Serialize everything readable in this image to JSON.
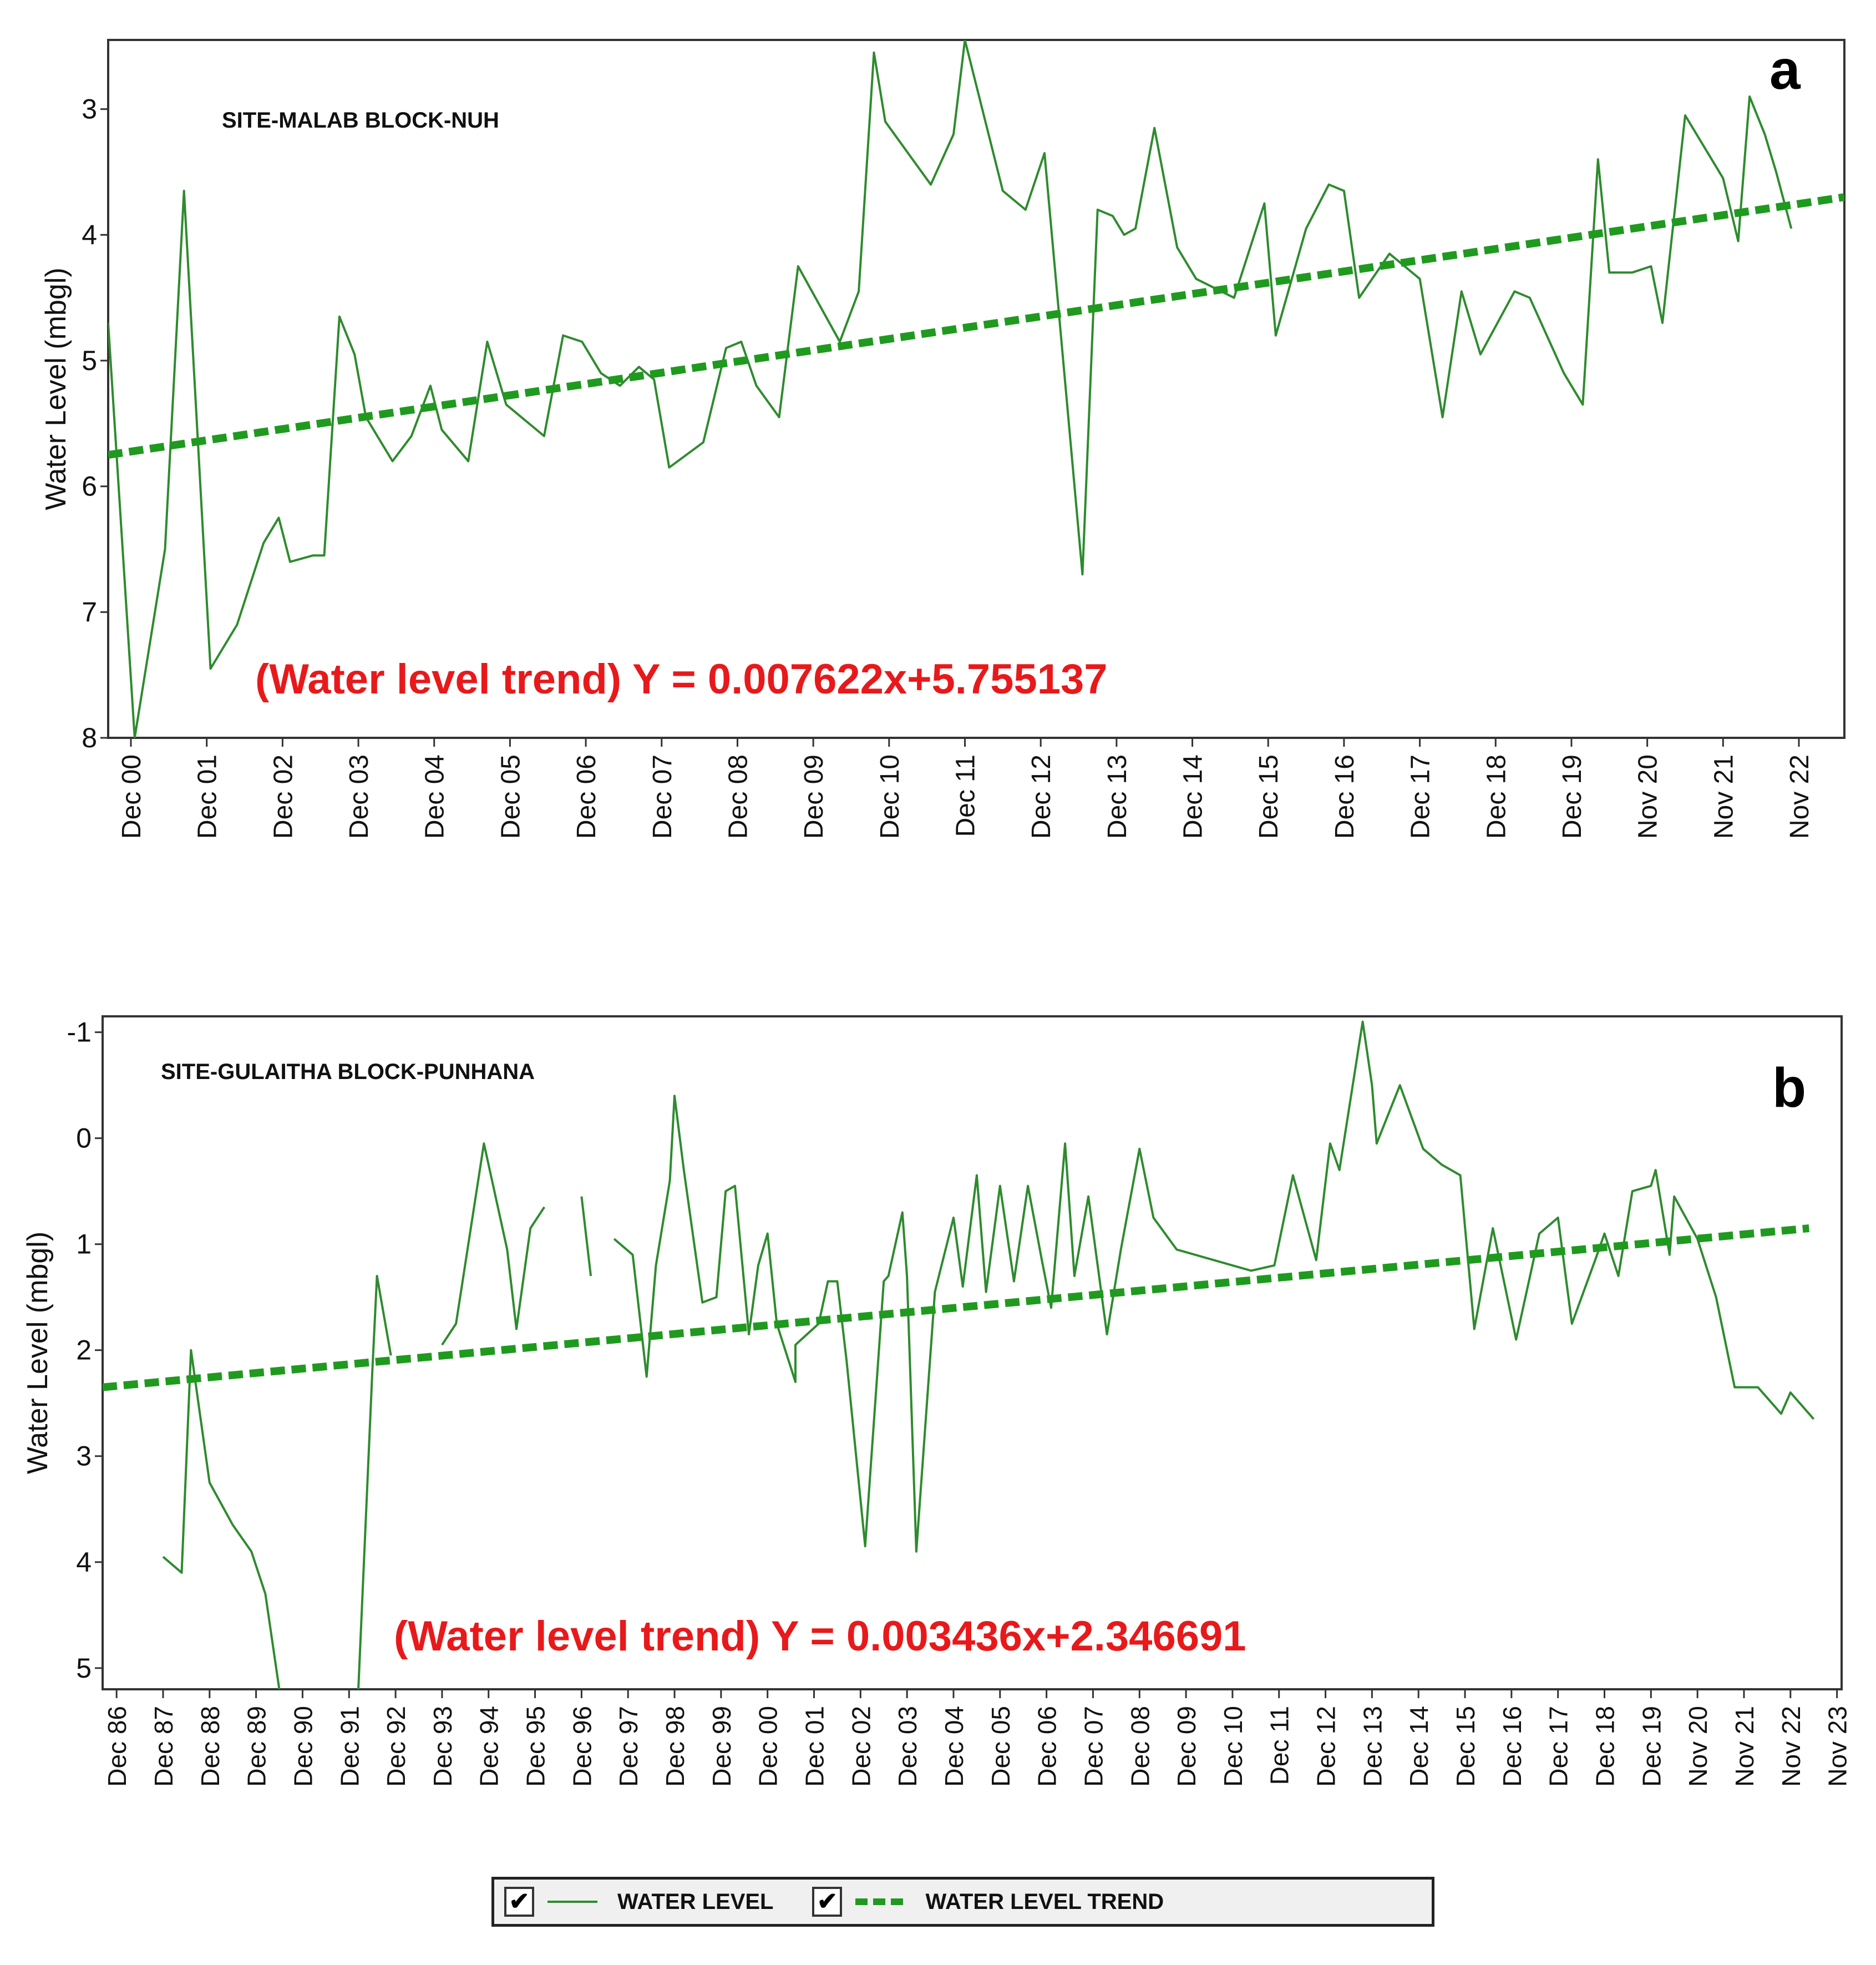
{
  "colors": {
    "water_level": "#2e8b2e",
    "trend": "#1f9a1f",
    "equation": "#e8191b",
    "frame": "#333333",
    "label": "#111111"
  },
  "legend": {
    "water_level_label": "WATER LEVEL",
    "trend_label": "WATER LEVEL TREND",
    "checkbox_glyph": "✔"
  },
  "chart_data": [
    {
      "type": "line",
      "panel_tag": "a",
      "title": "SITE-MALAB BLOCK-NUH",
      "ylabel": "Water Level (mbgl)",
      "xlabel": "",
      "y_inverted": true,
      "ylim": [
        2.45,
        8.0
      ],
      "yticks": [
        3,
        4,
        5,
        6,
        7,
        8
      ],
      "xlim": [
        -0.3,
        22.6
      ],
      "xtick_positions": [
        0,
        1,
        2,
        3,
        4,
        5,
        6,
        7,
        8,
        9,
        10,
        11,
        12,
        13,
        14,
        15,
        16,
        17,
        18,
        19,
        20,
        21,
        22
      ],
      "xtick_labels": [
        "Dec 00",
        "Dec 01",
        "Dec 02",
        "Dec 03",
        "Dec 04",
        "Dec 05",
        "Dec 06",
        "Dec 07",
        "Dec 08",
        "Dec 09",
        "Dec 10",
        "Dec 11",
        "Dec 12",
        "Dec 13",
        "Dec 14",
        "Dec 15",
        "Dec 16",
        "Dec 17",
        "Dec 18",
        "Dec 19",
        "Nov 20",
        "Nov 21",
        "Nov 22"
      ],
      "equation": "(Water level trend) Y = 0.007622x+5.755137",
      "series": [
        {
          "name": "WATER LEVEL",
          "segments": [
            [
              [
                -0.3,
                4.7
              ],
              [
                0.05,
                8.0
              ],
              [
                0.45,
                6.5
              ],
              [
                0.7,
                3.65
              ],
              [
                1.05,
                7.45
              ],
              [
                1.4,
                7.1
              ],
              [
                1.75,
                6.45
              ],
              [
                1.95,
                6.25
              ],
              [
                2.1,
                6.6
              ],
              [
                2.4,
                6.55
              ],
              [
                2.55,
                6.55
              ],
              [
                2.75,
                4.65
              ],
              [
                2.95,
                4.95
              ],
              [
                3.1,
                5.45
              ],
              [
                3.45,
                5.8
              ],
              [
                3.7,
                5.6
              ],
              [
                3.95,
                5.2
              ],
              [
                4.1,
                5.55
              ],
              [
                4.45,
                5.8
              ],
              [
                4.7,
                4.85
              ],
              [
                4.95,
                5.35
              ],
              [
                5.45,
                5.6
              ],
              [
                5.7,
                4.8
              ],
              [
                5.95,
                4.85
              ],
              [
                6.2,
                5.1
              ],
              [
                6.45,
                5.2
              ],
              [
                6.7,
                5.05
              ],
              [
                6.9,
                5.15
              ],
              [
                7.1,
                5.85
              ],
              [
                7.55,
                5.65
              ],
              [
                7.85,
                4.9
              ],
              [
                8.05,
                4.85
              ],
              [
                8.25,
                5.2
              ],
              [
                8.55,
                5.45
              ],
              [
                8.8,
                4.25
              ],
              [
                9.35,
                4.85
              ],
              [
                9.6,
                4.45
              ],
              [
                9.8,
                2.55
              ],
              [
                9.95,
                3.1
              ],
              [
                10.55,
                3.6
              ],
              [
                10.85,
                3.2
              ],
              [
                11.0,
                2.45
              ],
              [
                11.5,
                3.65
              ],
              [
                11.8,
                3.8
              ],
              [
                12.05,
                3.35
              ],
              [
                12.55,
                6.7
              ],
              [
                12.75,
                3.8
              ],
              [
                12.95,
                3.85
              ],
              [
                13.1,
                4.0
              ],
              [
                13.25,
                3.95
              ],
              [
                13.5,
                3.15
              ],
              [
                13.8,
                4.1
              ],
              [
                14.05,
                4.35
              ],
              [
                14.55,
                4.5
              ],
              [
                14.95,
                3.75
              ],
              [
                15.1,
                4.8
              ],
              [
                15.5,
                3.95
              ],
              [
                15.8,
                3.6
              ],
              [
                16.0,
                3.65
              ],
              [
                16.2,
                4.5
              ],
              [
                16.6,
                4.15
              ],
              [
                17.0,
                4.35
              ],
              [
                17.3,
                5.45
              ],
              [
                17.55,
                4.45
              ],
              [
                17.8,
                4.95
              ],
              [
                18.25,
                4.45
              ],
              [
                18.45,
                4.5
              ],
              [
                18.9,
                5.1
              ],
              [
                19.15,
                5.35
              ],
              [
                19.35,
                3.4
              ],
              [
                19.5,
                4.3
              ],
              [
                19.8,
                4.3
              ],
              [
                20.05,
                4.25
              ],
              [
                20.2,
                4.7
              ],
              [
                20.5,
                3.05
              ],
              [
                21.0,
                3.55
              ],
              [
                21.2,
                4.05
              ],
              [
                21.35,
                2.9
              ],
              [
                21.55,
                3.2
              ],
              [
                21.7,
                3.5
              ],
              [
                21.9,
                3.95
              ]
            ]
          ]
        },
        {
          "name": "WATER LEVEL TREND",
          "dashed": true,
          "segments": [
            [
              [
                -0.3,
                5.75
              ],
              [
                22.6,
                3.7
              ]
            ]
          ]
        }
      ]
    },
    {
      "type": "line",
      "panel_tag": "b",
      "title": "SITE-GULAITHA  BLOCK-PUNHANA",
      "ylabel": "Water Level (mbgl)",
      "xlabel": "",
      "y_inverted": true,
      "ylim": [
        -1.15,
        5.2
      ],
      "yticks": [
        -1,
        0,
        1,
        2,
        3,
        4,
        5
      ],
      "xlim": [
        -0.3,
        37.1
      ],
      "xtick_positions": [
        0,
        1,
        2,
        3,
        4,
        5,
        6,
        7,
        8,
        9,
        10,
        11,
        12,
        13,
        14,
        15,
        16,
        17,
        18,
        19,
        20,
        21,
        22,
        23,
        24,
        25,
        26,
        27,
        28,
        29,
        30,
        31,
        32,
        33,
        34,
        35,
        36,
        37
      ],
      "xtick_labels": [
        "Dec 86",
        "Dec 87",
        "Dec 88",
        "Dec 89",
        "Dec 90",
        "Dec 91",
        "Dec 92",
        "Dec 93",
        "Dec 94",
        "Dec 95",
        "Dec 96",
        "Dec 97",
        "Dec 98",
        "Dec 99",
        "Dec 00",
        "Dec 01",
        "Dec 02",
        "Dec 03",
        "Dec 04",
        "Dec 05",
        "Dec 06",
        "Dec 07",
        "Dec 08",
        "Dec 09",
        "Dec 10",
        "Dec 11",
        "Dec 12",
        "Dec 13",
        "Dec 14",
        "Dec 15",
        "Dec 16",
        "Dec 17",
        "Dec 18",
        "Dec 19",
        "Nov 20",
        "Nov 21",
        "Nov 22",
        "Nov 23"
      ],
      "equation": "(Water level trend) Y = 0.003436x+2.346691",
      "series": [
        {
          "name": "WATER LEVEL",
          "segments": [
            [
              [
                1.0,
                3.95
              ],
              [
                1.4,
                4.1
              ],
              [
                1.6,
                2.0
              ],
              [
                2.0,
                3.25
              ],
              [
                2.5,
                3.65
              ],
              [
                2.9,
                3.9
              ],
              [
                3.2,
                4.3
              ],
              [
                3.5,
                5.2
              ]
            ],
            [
              [
                5.2,
                5.2
              ],
              [
                5.5,
                2.2
              ],
              [
                5.6,
                1.3
              ],
              [
                5.9,
                2.05
              ]
            ],
            [
              [
                7.0,
                1.95
              ],
              [
                7.3,
                1.75
              ],
              [
                7.9,
                0.05
              ],
              [
                8.4,
                1.05
              ],
              [
                8.6,
                1.8
              ],
              [
                8.9,
                0.85
              ],
              [
                9.2,
                0.65
              ]
            ],
            [
              [
                10.0,
                0.55
              ],
              [
                10.2,
                1.3
              ]
            ],
            [
              [
                10.7,
                0.95
              ],
              [
                11.1,
                1.1
              ],
              [
                11.4,
                2.25
              ],
              [
                11.6,
                1.2
              ],
              [
                11.9,
                0.4
              ],
              [
                12.0,
                -0.4
              ],
              [
                12.2,
                0.3
              ],
              [
                12.6,
                1.55
              ],
              [
                12.9,
                1.5
              ],
              [
                13.1,
                0.5
              ],
              [
                13.3,
                0.45
              ],
              [
                13.6,
                1.85
              ],
              [
                13.8,
                1.2
              ],
              [
                14.0,
                0.9
              ],
              [
                14.2,
                1.75
              ],
              [
                14.6,
                2.3
              ],
              [
                14.6,
                1.95
              ],
              [
                15.1,
                1.75
              ],
              [
                15.3,
                1.35
              ],
              [
                15.5,
                1.35
              ],
              [
                15.7,
                2.1
              ],
              [
                16.1,
                3.85
              ],
              [
                16.5,
                1.35
              ],
              [
                16.6,
                1.3
              ],
              [
                16.9,
                0.7
              ],
              [
                17.0,
                1.3
              ],
              [
                17.2,
                3.9
              ],
              [
                17.6,
                1.45
              ],
              [
                18.0,
                0.75
              ],
              [
                18.2,
                1.4
              ],
              [
                18.5,
                0.35
              ],
              [
                18.7,
                1.45
              ],
              [
                19.0,
                0.45
              ],
              [
                19.3,
                1.35
              ],
              [
                19.6,
                0.45
              ],
              [
                19.9,
                1.15
              ],
              [
                20.1,
                1.6
              ],
              [
                20.4,
                0.05
              ],
              [
                20.6,
                1.3
              ],
              [
                20.9,
                0.55
              ],
              [
                21.1,
                1.2
              ],
              [
                21.3,
                1.85
              ],
              [
                21.6,
                1.05
              ],
              [
                22.0,
                0.1
              ],
              [
                22.3,
                0.75
              ],
              [
                22.8,
                1.05
              ],
              [
                24.4,
                1.25
              ],
              [
                24.9,
                1.2
              ],
              [
                25.3,
                0.35
              ],
              [
                25.8,
                1.15
              ],
              [
                26.1,
                0.05
              ],
              [
                26.3,
                0.3
              ],
              [
                26.8,
                -1.1
              ],
              [
                27.0,
                -0.5
              ],
              [
                27.1,
                0.05
              ],
              [
                27.6,
                -0.5
              ],
              [
                28.1,
                0.1
              ],
              [
                28.5,
                0.25
              ],
              [
                28.9,
                0.35
              ],
              [
                29.2,
                1.8
              ],
              [
                29.6,
                0.85
              ],
              [
                30.1,
                1.9
              ],
              [
                30.6,
                0.9
              ],
              [
                31.0,
                0.75
              ],
              [
                31.3,
                1.75
              ],
              [
                31.8,
                1.15
              ],
              [
                32.0,
                0.9
              ],
              [
                32.3,
                1.3
              ],
              [
                32.6,
                0.5
              ],
              [
                33.0,
                0.45
              ],
              [
                33.1,
                0.3
              ],
              [
                33.4,
                1.1
              ],
              [
                33.5,
                0.55
              ],
              [
                34.0,
                0.95
              ],
              [
                34.4,
                1.5
              ],
              [
                34.8,
                2.35
              ],
              [
                35.3,
                2.35
              ],
              [
                35.8,
                2.6
              ],
              [
                36.0,
                2.4
              ],
              [
                36.5,
                2.65
              ]
            ]
          ]
        },
        {
          "name": "WATER LEVEL TREND",
          "dashed": true,
          "segments": [
            [
              [
                -0.3,
                2.35
              ],
              [
                36.4,
                0.85
              ]
            ]
          ]
        }
      ]
    }
  ]
}
